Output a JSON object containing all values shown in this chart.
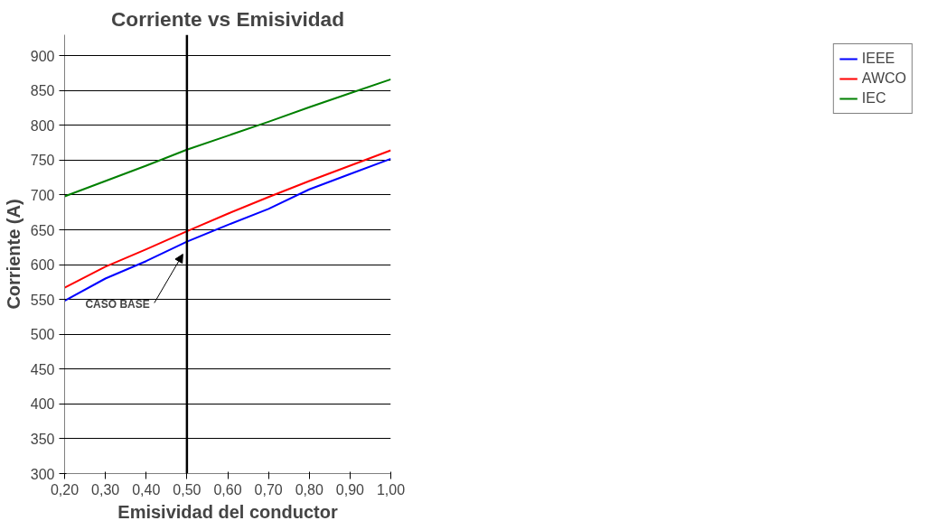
{
  "chart_data": {
    "type": "line",
    "title": "Corriente vs Emisividad",
    "xlabel": "Emisividad del conductor",
    "ylabel": "Corriente (A)",
    "x": [
      0.2,
      0.3,
      0.4,
      0.5,
      0.6,
      0.7,
      0.8,
      0.9,
      1.0
    ],
    "series": [
      {
        "name": "IEEE",
        "color": "#0000ff",
        "values": [
          548,
          580,
          605,
          633,
          657,
          680,
          708,
          730,
          752
        ]
      },
      {
        "name": "AWCO",
        "color": "#ff0000",
        "values": [
          567,
          597,
          622,
          648,
          673,
          697,
          720,
          742,
          764
        ]
      },
      {
        "name": "IEC",
        "color": "#008000",
        "values": [
          698,
          720,
          742,
          765,
          785,
          805,
          826,
          846,
          866
        ]
      }
    ],
    "xlim": [
      0.2,
      1.0
    ],
    "xticks": [
      {
        "value": 0.2,
        "label": "0,20"
      },
      {
        "value": 0.3,
        "label": "0,30"
      },
      {
        "value": 0.4,
        "label": "0,40"
      },
      {
        "value": 0.5,
        "label": "0,50"
      },
      {
        "value": 0.6,
        "label": "0,60"
      },
      {
        "value": 0.7,
        "label": "0,70"
      },
      {
        "value": 0.8,
        "label": "0,80"
      },
      {
        "value": 0.9,
        "label": "0,90"
      },
      {
        "value": 1.0,
        "label": "1,00"
      }
    ],
    "ylim": [
      300,
      930
    ],
    "yticks": [
      300,
      350,
      400,
      450,
      500,
      550,
      600,
      650,
      700,
      750,
      800,
      850,
      900
    ],
    "ref_lines": [
      {
        "axis": "x",
        "value": 0.5,
        "color": "#000000"
      }
    ],
    "annotations": [
      {
        "text": "CASO BASE",
        "x": 0.49,
        "y": 615
      }
    ],
    "grid": "y",
    "legend": "right",
    "marker": "none",
    "line_style": "solid"
  }
}
